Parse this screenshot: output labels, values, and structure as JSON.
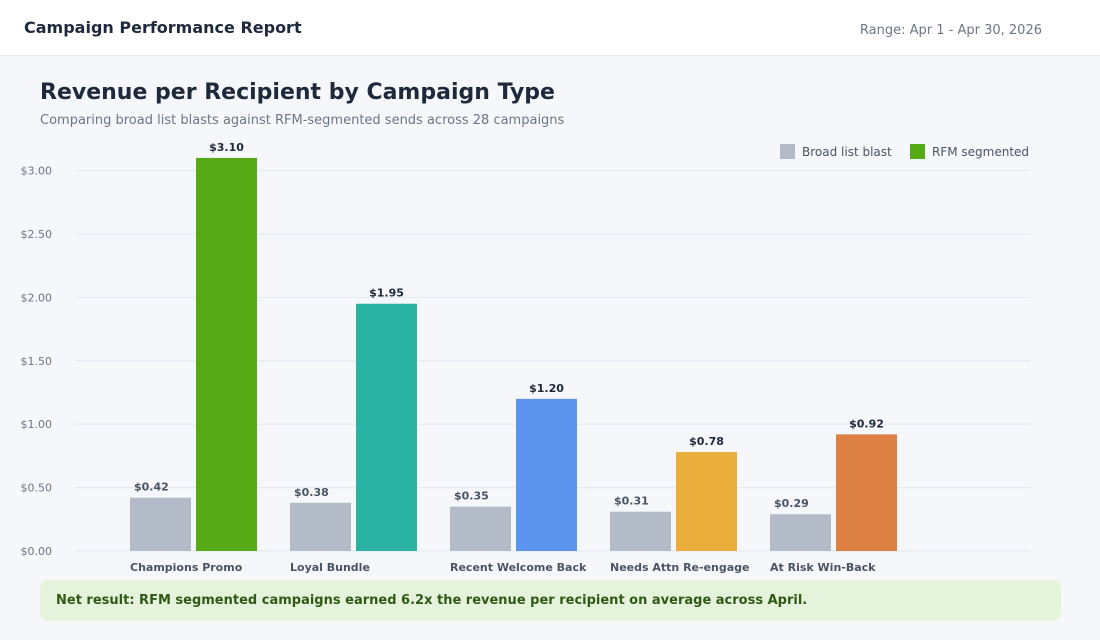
{
  "header": {
    "title": "Campaign Performance Report",
    "range": "Range: Apr 1 - Apr 30, 2026"
  },
  "footer": {
    "note": "Net result: RFM segmented campaigns earned 6.2x the revenue per recipient on average across April."
  },
  "chart_data": {
    "type": "bar",
    "title": "Revenue per Recipient by Campaign Type",
    "subtitle": "Comparing broad list blasts against RFM-segmented sends across 28 campaigns",
    "xlabel": "",
    "ylabel": "",
    "categories": [
      "Champions Promo",
      "Loyal Bundle",
      "Recent Welcome Back",
      "Needs Attn Re-engage",
      "At Risk Win-Back"
    ],
    "series": [
      {
        "name": "Broad list blast",
        "values": [
          0.42,
          0.38,
          0.35,
          0.31,
          0.29
        ],
        "labels": [
          "$0.42",
          "$0.38",
          "$0.35",
          "$0.31",
          "$0.29"
        ],
        "color": "#b4bbc8"
      },
      {
        "name": "RFM segmented",
        "values": [
          3.1,
          1.95,
          1.2,
          0.78,
          0.92
        ],
        "labels": [
          "$3.10",
          "$1.95",
          "$1.20",
          "$0.78",
          "$0.92"
        ],
        "colors": [
          "#55aa15",
          "#2ab3a2",
          "#5b95ee",
          "#eaae3c",
          "#dc8044"
        ],
        "legend_color": "#55aa15"
      }
    ],
    "yticks": [
      0,
      0.5,
      1,
      1.5,
      2,
      2.5,
      3
    ],
    "ytick_labels": [
      "$0.00",
      "$0.50",
      "$1.00",
      "$1.50",
      "$2.00",
      "$2.50",
      "$3.00"
    ],
    "ylim": [
      0,
      3.1
    ],
    "grid": true,
    "legend_position": "top-right"
  }
}
